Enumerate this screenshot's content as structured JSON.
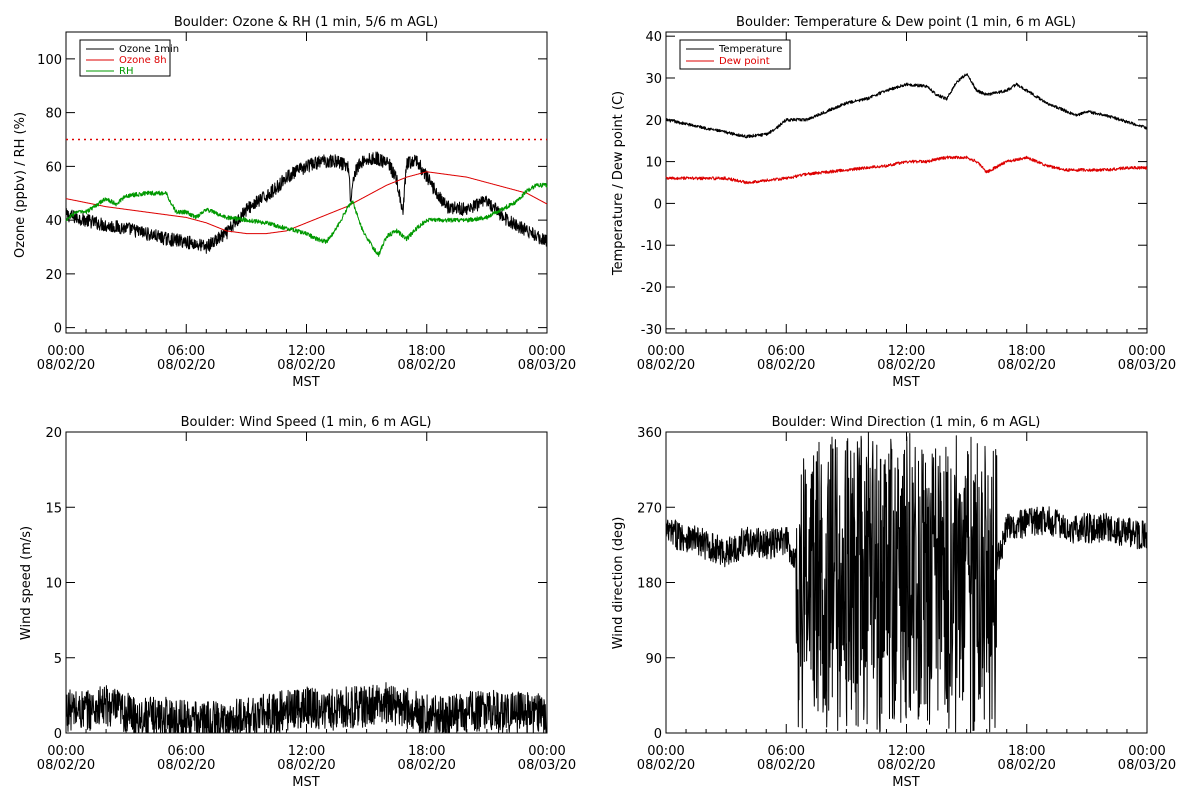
{
  "chart_data": [
    {
      "type": "line",
      "title": "Boulder: Ozone & RH (1 min, 5/6 m AGL)",
      "xlabel": "MST",
      "ylabel": "Ozone (ppbv) / RH (%)",
      "xlim": [
        0,
        24
      ],
      "ylim": [
        -2,
        110
      ],
      "yticks": [
        0,
        20,
        40,
        60,
        80,
        100
      ],
      "xticks": [
        {
          "h": 0,
          "time": "00:00",
          "date": "08/02/20"
        },
        {
          "h": 6,
          "time": "06:00",
          "date": "08/02/20"
        },
        {
          "h": 12,
          "time": "12:00",
          "date": "08/02/20"
        },
        {
          "h": 18,
          "time": "18:00",
          "date": "08/02/20"
        },
        {
          "h": 24,
          "time": "00:00",
          "date": "08/03/20"
        }
      ],
      "legend_position": "top-left",
      "reference_lines": [
        {
          "y": 70,
          "color": "#dd0000",
          "style": "dotted"
        }
      ],
      "series": [
        {
          "name": "Ozone 1min",
          "color": "#000000",
          "noise": 2.5,
          "x": [
            0,
            1,
            2,
            3,
            4,
            5,
            6,
            7,
            8,
            9,
            10,
            10.5,
            11,
            12,
            12.8,
            13.5,
            14.1,
            14.2,
            14.4,
            14.8,
            15.5,
            16.1,
            16.5,
            16.8,
            17,
            17.5,
            18,
            18.5,
            19,
            20,
            21,
            22,
            23,
            24
          ],
          "y": [
            42,
            40,
            38,
            37,
            35,
            33,
            32,
            30,
            35,
            44,
            49,
            52,
            56,
            60,
            62,
            62,
            60,
            47,
            58,
            62,
            63,
            61,
            55,
            42,
            61,
            62,
            56,
            50,
            45,
            44,
            47,
            40,
            36,
            32
          ]
        },
        {
          "name": "Ozone 8h",
          "color": "#dd0000",
          "noise": 0,
          "x": [
            0,
            2,
            4,
            6,
            7,
            8,
            9,
            10,
            11,
            12,
            13,
            14,
            15,
            16,
            17,
            18,
            19,
            20,
            21,
            22,
            23,
            24
          ],
          "y": [
            48,
            45,
            43,
            41,
            39,
            36,
            35,
            35,
            36,
            39,
            42,
            45,
            49,
            53,
            56,
            58,
            57,
            56,
            54,
            52,
            50,
            46
          ]
        },
        {
          "name": "RH",
          "color": "#009900",
          "noise": 0.8,
          "x": [
            0,
            0.5,
            1,
            2,
            2.5,
            3,
            4,
            5,
            5.5,
            6,
            6.5,
            7,
            8,
            9,
            10,
            11,
            12,
            12.5,
            13,
            13.5,
            14,
            14.3,
            14.8,
            15.3,
            15.6,
            16,
            16.5,
            17,
            17.5,
            18,
            19,
            20,
            21,
            22,
            22.5,
            23,
            23.5,
            24
          ],
          "y": [
            40,
            43,
            43,
            48,
            46,
            49,
            50,
            50,
            43,
            43,
            41,
            44,
            41,
            40,
            39,
            37,
            35,
            33,
            32,
            37,
            44,
            47,
            36,
            30,
            27,
            34,
            36,
            33,
            37,
            40,
            40,
            40,
            41,
            45,
            47,
            51,
            53,
            53
          ]
        }
      ]
    },
    {
      "type": "line",
      "title": "Boulder: Temperature & Dew point (1 min, 6 m AGL)",
      "xlabel": "MST",
      "ylabel": "Temperature / Dew point (C)",
      "xlim": [
        0,
        24
      ],
      "ylim": [
        -31,
        41
      ],
      "yticks": [
        -30,
        -20,
        -10,
        0,
        10,
        20,
        30,
        40
      ],
      "xticks": [
        {
          "h": 0,
          "time": "00:00",
          "date": "08/02/20"
        },
        {
          "h": 6,
          "time": "06:00",
          "date": "08/02/20"
        },
        {
          "h": 12,
          "time": "12:00",
          "date": "08/02/20"
        },
        {
          "h": 18,
          "time": "18:00",
          "date": "08/02/20"
        },
        {
          "h": 24,
          "time": "00:00",
          "date": "08/03/20"
        }
      ],
      "legend_position": "top-left",
      "reference_lines": [],
      "series": [
        {
          "name": "Temperature",
          "color": "#000000",
          "noise": 0.35,
          "x": [
            0,
            1,
            2,
            3,
            4,
            5,
            5.5,
            6,
            7,
            8,
            9,
            10,
            11,
            12,
            13,
            13.5,
            14,
            14.5,
            15,
            15.5,
            16,
            17,
            17.5,
            18,
            19,
            19.5,
            20,
            20.5,
            21,
            22,
            23,
            24
          ],
          "y": [
            20,
            19,
            18,
            17,
            16,
            16.5,
            18,
            20,
            20,
            22,
            24,
            25,
            27,
            28.5,
            28,
            26,
            25,
            29,
            31,
            27,
            26,
            27,
            28.5,
            27,
            24,
            23,
            22,
            21,
            22,
            21,
            19.5,
            18
          ]
        },
        {
          "name": "Dew point",
          "color": "#dd0000",
          "noise": 0.35,
          "x": [
            0,
            2,
            3,
            4,
            5,
            6,
            7,
            8,
            9,
            10,
            11,
            12,
            13,
            14,
            15,
            15.5,
            16,
            17,
            18,
            19,
            20,
            21,
            22,
            23,
            24
          ],
          "y": [
            6,
            6,
            6,
            5,
            5.5,
            6,
            7,
            7.5,
            8,
            8.5,
            9,
            10,
            10,
            11,
            11,
            10,
            7.5,
            10,
            11,
            9,
            8,
            8,
            8,
            8.5,
            8.5
          ]
        }
      ]
    },
    {
      "type": "line",
      "title": "Boulder: Wind Speed (1 min, 6 m AGL)",
      "xlabel": "MST",
      "ylabel": "Wind speed (m/s)",
      "xlim": [
        0,
        24
      ],
      "ylim": [
        0,
        20
      ],
      "yticks": [
        0,
        5,
        10,
        15,
        20
      ],
      "xticks": [
        {
          "h": 0,
          "time": "00:00",
          "date": "08/02/20"
        },
        {
          "h": 6,
          "time": "06:00",
          "date": "08/02/20"
        },
        {
          "h": 12,
          "time": "12:00",
          "date": "08/02/20"
        },
        {
          "h": 18,
          "time": "18:00",
          "date": "08/02/20"
        },
        {
          "h": 24,
          "time": "00:00",
          "date": "08/03/20"
        }
      ],
      "reference_lines": [],
      "series": [
        {
          "color": "#000000",
          "noise": 1.4,
          "x": [
            0,
            1,
            2,
            3,
            4,
            5,
            6,
            7,
            8,
            9,
            10,
            11,
            12,
            13,
            14,
            15,
            16,
            17,
            18,
            19,
            20,
            21,
            22,
            23,
            24
          ],
          "y": [
            1.5,
            1.5,
            1.8,
            1.3,
            1.0,
            1.0,
            0.8,
            0.7,
            0.7,
            1.0,
            1.2,
            1.5,
            1.8,
            1.5,
            1.7,
            1.7,
            2.0,
            1.6,
            1.2,
            1.0,
            1.4,
            1.5,
            1.4,
            1.3,
            1.2
          ]
        }
      ]
    },
    {
      "type": "line",
      "title": "Boulder: Wind Direction (1 min, 6 m AGL)",
      "xlabel": "MST",
      "ylabel": "Wind direction (deg)",
      "xlim": [
        0,
        24
      ],
      "ylim": [
        0,
        360
      ],
      "yticks": [
        0,
        90,
        180,
        270,
        360
      ],
      "xticks": [
        {
          "h": 0,
          "time": "00:00",
          "date": "08/02/20"
        },
        {
          "h": 6,
          "time": "06:00",
          "date": "08/02/20"
        },
        {
          "h": 12,
          "time": "12:00",
          "date": "08/02/20"
        },
        {
          "h": 18,
          "time": "18:00",
          "date": "08/02/20"
        },
        {
          "h": 24,
          "time": "00:00",
          "date": "08/03/20"
        }
      ],
      "reference_lines": [],
      "series": [
        {
          "color": "#000000",
          "noise": 18,
          "wrap_from": 6.5,
          "wrap_to": 16.5,
          "x": [
            0,
            1,
            2,
            3,
            4,
            5,
            6,
            7,
            8,
            9,
            10,
            11,
            12,
            13,
            14,
            15,
            16,
            17,
            18,
            19,
            20,
            21,
            22,
            23,
            24
          ],
          "y": [
            240,
            235,
            225,
            215,
            230,
            225,
            230,
            180,
            170,
            200,
            190,
            200,
            210,
            190,
            230,
            220,
            160,
            245,
            250,
            255,
            245,
            245,
            245,
            240,
            235
          ]
        }
      ]
    }
  ]
}
